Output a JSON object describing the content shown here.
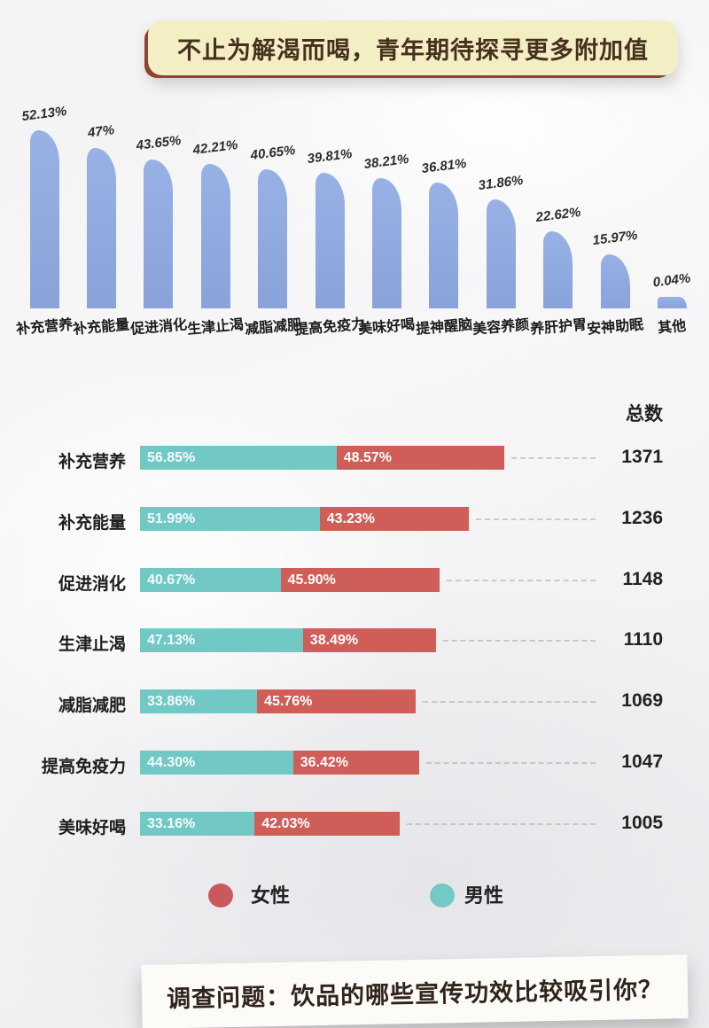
{
  "title": {
    "text": "不止为解渴而喝，青年期待探寻更多附加值"
  },
  "footer": {
    "text": "调查问题：饮品的哪些宣传功效比较吸引你？"
  },
  "legend": [
    {
      "label": "女性",
      "color": "#c9595c"
    },
    {
      "label": "男性",
      "color": "#74c8c5"
    }
  ],
  "colors": {
    "top_bar_blue": "#8ca6dc",
    "male_teal": "#72c8c5",
    "female_red": "#cf5e59",
    "title_banner_bg": "#f4eec5",
    "title_banner_text": "#46311c",
    "footer_banner_bg": "#fcfbf8"
  },
  "chart_data": [
    {
      "type": "bar",
      "title": "不止为解渴而喝，青年期待探寻更多附加值",
      "unit": "%",
      "categories": [
        "补充营养",
        "补充能量",
        "促进消化",
        "生津止渴",
        "减脂减肥",
        "提高免疫力",
        "美味好喝",
        "提神醒脑",
        "美容养颜",
        "养肝护胃",
        "安神助眠",
        "其他"
      ],
      "values": [
        52.13,
        47,
        43.65,
        42.21,
        40.65,
        39.81,
        38.21,
        36.81,
        31.86,
        22.62,
        15.97,
        0.04
      ],
      "value_labels": [
        "52.13%",
        "47%",
        "43.65%",
        "42.21%",
        "40.65%",
        "39.81%",
        "38.21%",
        "36.81%",
        "31.86%",
        "22.62%",
        "15.97%",
        "0.04%"
      ],
      "xlabel": "",
      "ylabel": "",
      "ylim": [
        0,
        60
      ],
      "grid": false,
      "legend_position": "none"
    },
    {
      "type": "bar",
      "orientation": "horizontal",
      "title": "调查问题：饮品的哪些宣传功效比较吸引你？",
      "unit": "%",
      "total_header": "总数",
      "categories": [
        "补充营养",
        "补充能量",
        "促进消化",
        "生津止渴",
        "减脂减肥",
        "提高免疫力",
        "美味好喝"
      ],
      "series": [
        {
          "name": "男性",
          "color": "#72c8c5",
          "values": [
            56.85,
            51.99,
            40.67,
            47.13,
            33.86,
            44.3,
            33.16
          ],
          "value_labels": [
            "56.85%",
            "51.99%",
            "40.67%",
            "47.13%",
            "33.86%",
            "44.30%",
            "33.16%"
          ]
        },
        {
          "name": "女性",
          "color": "#cf5e59",
          "values": [
            48.57,
            43.23,
            45.9,
            38.49,
            45.76,
            36.42,
            42.03
          ],
          "value_labels": [
            "48.57%",
            "43.23%",
            "45.90%",
            "38.49%",
            "45.76%",
            "36.42%",
            "42.03%"
          ]
        }
      ],
      "totals": [
        1371,
        1236,
        1148,
        1110,
        1069,
        1047,
        1005
      ],
      "grid": false,
      "legend_position": "bottom"
    }
  ]
}
